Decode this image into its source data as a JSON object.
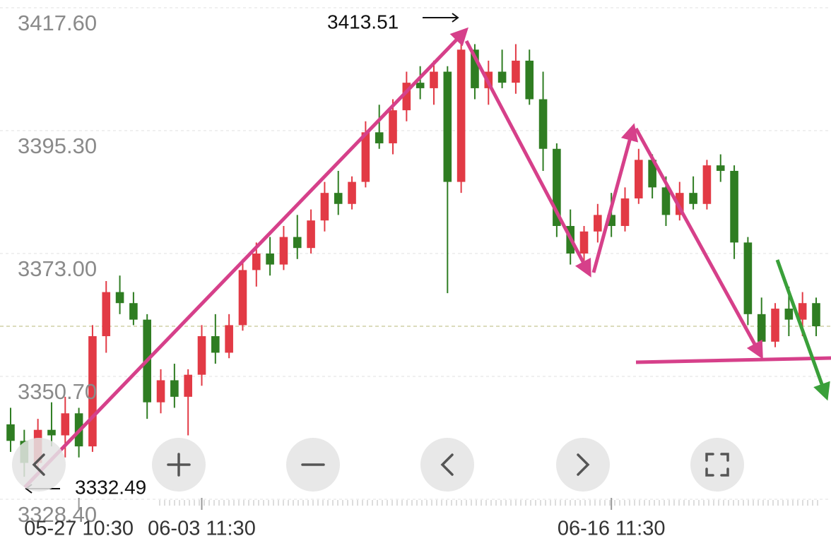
{
  "chart_data": {
    "type": "candlestick",
    "categories": [
      null,
      null,
      null,
      null,
      null,
      "05-27 10:30",
      null,
      null,
      null,
      null,
      null,
      null,
      null,
      null,
      "06-03 11:30",
      null,
      null,
      null,
      null,
      null,
      null,
      null,
      null,
      null,
      null,
      null,
      null,
      null,
      null,
      null,
      null,
      null,
      null,
      null,
      null,
      null,
      null,
      null,
      null,
      null,
      null,
      null,
      null,
      null,
      "06-16 11:30",
      null,
      null,
      null,
      null,
      null,
      null,
      null,
      null,
      null,
      null,
      null,
      null,
      null,
      null,
      null
    ],
    "candles": [
      [
        3342,
        3345,
        3337,
        3339
      ],
      [
        3339,
        3341,
        3332.49,
        3335
      ],
      [
        3335,
        3343,
        3334,
        3341
      ],
      [
        3341,
        3346,
        3338,
        3340
      ],
      [
        3340,
        3347,
        3336,
        3344
      ],
      [
        3344,
        3345,
        3336,
        3338
      ],
      [
        3338,
        3360,
        3337,
        3358
      ],
      [
        3358,
        3368,
        3355,
        3366
      ],
      [
        3366,
        3369,
        3362,
        3364
      ],
      [
        3364,
        3366,
        3360,
        3361
      ],
      [
        3361,
        3362,
        3343,
        3346
      ],
      [
        3346,
        3352,
        3344,
        3350
      ],
      [
        3350,
        3353,
        3345,
        3347
      ],
      [
        3347,
        3352,
        3340,
        3351
      ],
      [
        3351,
        3360,
        3349,
        3358
      ],
      [
        3358,
        3362,
        3353,
        3355
      ],
      [
        3355,
        3362,
        3354,
        3360
      ],
      [
        3360,
        3372,
        3359,
        3370
      ],
      [
        3370,
        3375,
        3367,
        3373
      ],
      [
        3373,
        3376,
        3369,
        3371
      ],
      [
        3371,
        3378,
        3370,
        3376
      ],
      [
        3376,
        3380,
        3372,
        3374
      ],
      [
        3374,
        3381,
        3373,
        3379
      ],
      [
        3379,
        3386,
        3377,
        3384
      ],
      [
        3384,
        3388,
        3380,
        3382
      ],
      [
        3382,
        3387,
        3381,
        3386
      ],
      [
        3386,
        3397,
        3385,
        3395
      ],
      [
        3395,
        3400,
        3392,
        3393
      ],
      [
        3393,
        3401,
        3391,
        3399
      ],
      [
        3399,
        3406,
        3397,
        3404
      ],
      [
        3404,
        3407,
        3401,
        3403
      ],
      [
        3403,
        3408,
        3400,
        3406
      ],
      [
        3406,
        3407,
        3365.8,
        3386
      ],
      [
        3386,
        3413.51,
        3384,
        3410
      ],
      [
        3410,
        3411,
        3401,
        3403
      ],
      [
        3403,
        3408,
        3400,
        3406
      ],
      [
        3406,
        3410,
        3403,
        3404
      ],
      [
        3404,
        3411,
        3402,
        3408
      ],
      [
        3408,
        3410,
        3400,
        3401
      ],
      [
        3401,
        3406,
        3388,
        3392
      ],
      [
        3392,
        3393,
        3376,
        3378
      ],
      [
        3378,
        3381,
        3371,
        3373
      ],
      [
        3373,
        3378,
        3370,
        3377
      ],
      [
        3377,
        3382,
        3375,
        3380
      ],
      [
        3380,
        3384,
        3376,
        3378
      ],
      [
        3378,
        3385,
        3377,
        3383
      ],
      [
        3383,
        3392,
        3382,
        3390
      ],
      [
        3390,
        3391,
        3383,
        3385
      ],
      [
        3385,
        3387,
        3378,
        3380
      ],
      [
        3380,
        3386,
        3379,
        3384
      ],
      [
        3384,
        3387,
        3381,
        3382
      ],
      [
        3382,
        3390,
        3381,
        3389
      ],
      [
        3389,
        3391,
        3386,
        3388
      ],
      [
        3388,
        3389,
        3372,
        3375
      ],
      [
        3375,
        3376,
        3360,
        3362
      ],
      [
        3362,
        3365,
        3354.3,
        3357
      ],
      [
        3357,
        3364,
        3356,
        3363
      ],
      [
        3363,
        3367,
        3358,
        3361
      ],
      [
        3361,
        3366,
        3358,
        3364
      ],
      [
        3364,
        3365,
        3358,
        3359.8
      ]
    ],
    "up_color": "#e23a45",
    "down_color": "#2f7d22",
    "last_price": 3359.8,
    "ylim": [
      3328.4,
      3417.6
    ],
    "yticks": [
      {
        "value": 3417.6,
        "label": "3417.60"
      },
      {
        "value": 3395.3,
        "label": "3395.30"
      },
      {
        "value": 3373,
        "label": "3373.00"
      },
      {
        "value": 3350.7,
        "label": "3350.70"
      },
      {
        "value": 3328.4,
        "label": "3328.40"
      }
    ],
    "grid": true,
    "annotations": [
      "3413.51",
      "3332.49"
    ]
  }
}
